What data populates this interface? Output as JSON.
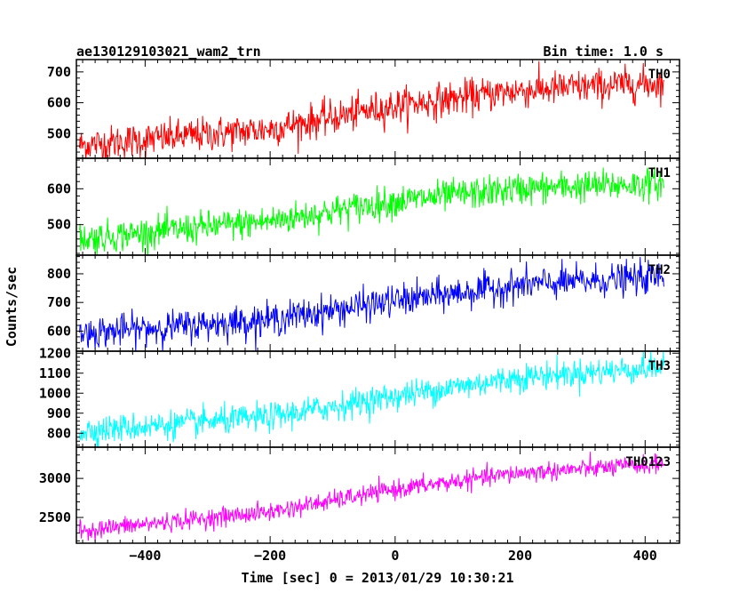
{
  "header": {
    "title": "ae130129103021_wam2_trn",
    "bin_time": "Bin time: 1.0 s"
  },
  "chart_data": {
    "type": "line",
    "title": "ae130129103021_wam2_trn",
    "subtitle": "Bin time: 1.0 s",
    "xlabel": "Time [sec] 0 = 2013/01/29 10:30:21",
    "ylabel": "Counts/sec",
    "xlim": [
      -510,
      455
    ],
    "x_ticks": [
      -400,
      -200,
      0,
      200,
      400
    ],
    "x_range_data": [
      -505,
      430
    ],
    "bin_time_s": 1.0,
    "panels": [
      {
        "name": "TH0",
        "color": "#ff0000",
        "ylim": [
          420,
          740
        ],
        "y_ticks": [
          500,
          600,
          700
        ],
        "trend": [
          {
            "x": -505,
            "y": 462
          },
          {
            "x": -200,
            "y": 515
          },
          {
            "x": 0,
            "y": 590
          },
          {
            "x": 200,
            "y": 640
          },
          {
            "x": 430,
            "y": 665
          }
        ],
        "noise_sd": 28
      },
      {
        "name": "TH1",
        "color": "#00ff00",
        "ylim": [
          415,
          685
        ],
        "y_ticks": [
          500,
          600
        ],
        "trend": [
          {
            "x": -505,
            "y": 460
          },
          {
            "x": -200,
            "y": 510
          },
          {
            "x": 0,
            "y": 565
          },
          {
            "x": 200,
            "y": 600
          },
          {
            "x": 430,
            "y": 615
          }
        ],
        "noise_sd": 22
      },
      {
        "name": "TH2",
        "color": "#0000ff",
        "ylim": [
          530,
          865
        ],
        "y_ticks": [
          600,
          700,
          800
        ],
        "trend": [
          {
            "x": -505,
            "y": 592
          },
          {
            "x": -200,
            "y": 640
          },
          {
            "x": 0,
            "y": 705
          },
          {
            "x": 200,
            "y": 760
          },
          {
            "x": 430,
            "y": 790
          }
        ],
        "noise_sd": 28
      },
      {
        "name": "TH3",
        "color": "#00ffff",
        "ylim": [
          730,
          1210
        ],
        "y_ticks": [
          800,
          900,
          1000,
          1100,
          1200
        ],
        "trend": [
          {
            "x": -505,
            "y": 810
          },
          {
            "x": -200,
            "y": 880
          },
          {
            "x": 0,
            "y": 985
          },
          {
            "x": 200,
            "y": 1080
          },
          {
            "x": 430,
            "y": 1130
          }
        ],
        "noise_sd": 35
      },
      {
        "name": "TH0123",
        "color": "#ff00ff",
        "ylim": [
          2170,
          3400
        ],
        "y_ticks": [
          2500,
          3000
        ],
        "trend": [
          {
            "x": -505,
            "y": 2330
          },
          {
            "x": -200,
            "y": 2570
          },
          {
            "x": 0,
            "y": 2860
          },
          {
            "x": 200,
            "y": 3070
          },
          {
            "x": 430,
            "y": 3185
          }
        ],
        "noise_sd": 60
      }
    ]
  }
}
